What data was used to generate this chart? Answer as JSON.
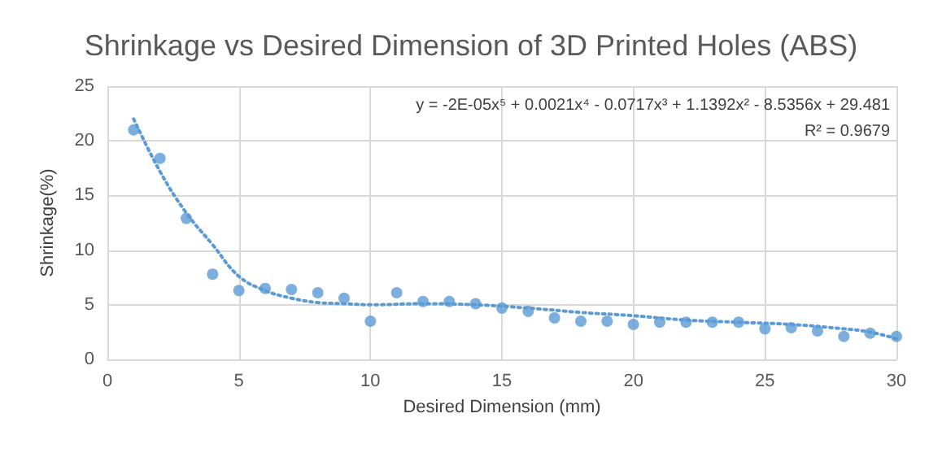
{
  "chart_data": {
    "type": "scatter",
    "title": "Shrinkage vs Desired Dimension of 3D Printed Holes (ABS)",
    "xlabel": "Desired Dimension (mm)",
    "ylabel": "Shrinkage(%)",
    "x": [
      1,
      2,
      3,
      4,
      5,
      6,
      7,
      8,
      9,
      10,
      11,
      12,
      13,
      14,
      15,
      16,
      17,
      18,
      19,
      20,
      21,
      22,
      23,
      24,
      25,
      26,
      27,
      28,
      29,
      30
    ],
    "series": [
      {
        "color": "#5b9bd5",
        "marker": "circle",
        "values": [
          21.0,
          18.4,
          12.9,
          7.8,
          6.3,
          6.5,
          6.4,
          6.1,
          5.6,
          3.5,
          6.1,
          5.3,
          5.3,
          5.1,
          4.7,
          4.4,
          3.8,
          3.5,
          3.5,
          3.2,
          3.4,
          3.4,
          3.4,
          3.4,
          2.8,
          2.9,
          2.6,
          2.1,
          2.4,
          2.1
        ]
      },
      {
        "type": "line",
        "color": "#5b9bd5",
        "line_style": "dotted",
        "x": [
          1,
          2,
          3,
          4,
          5,
          6,
          7,
          8,
          9,
          10,
          12,
          14,
          16,
          18,
          20,
          22,
          24,
          26,
          28,
          29,
          30
        ],
        "marker": "none",
        "values": [
          22.0,
          17.2,
          13.4,
          10.5,
          7.6,
          6.3,
          5.6,
          5.2,
          5.1,
          5.0,
          5.1,
          5.0,
          4.7,
          4.3,
          4.0,
          3.6,
          3.4,
          3.2,
          2.8,
          2.5,
          1.9
        ]
      }
    ],
    "annotations": [
      "y = -2E-05x⁵ + 0.0021x⁴ - 0.0717x³ + 1.1392x² - 8.5356x + 29.481",
      "R² = 0.9679"
    ],
    "xlim": [
      0,
      30
    ],
    "xticks": [
      0,
      5,
      10,
      15,
      20,
      25,
      30
    ],
    "ylim": [
      0,
      25
    ],
    "yticks": [
      0,
      5,
      10,
      15,
      20,
      25
    ],
    "grid": true
  }
}
